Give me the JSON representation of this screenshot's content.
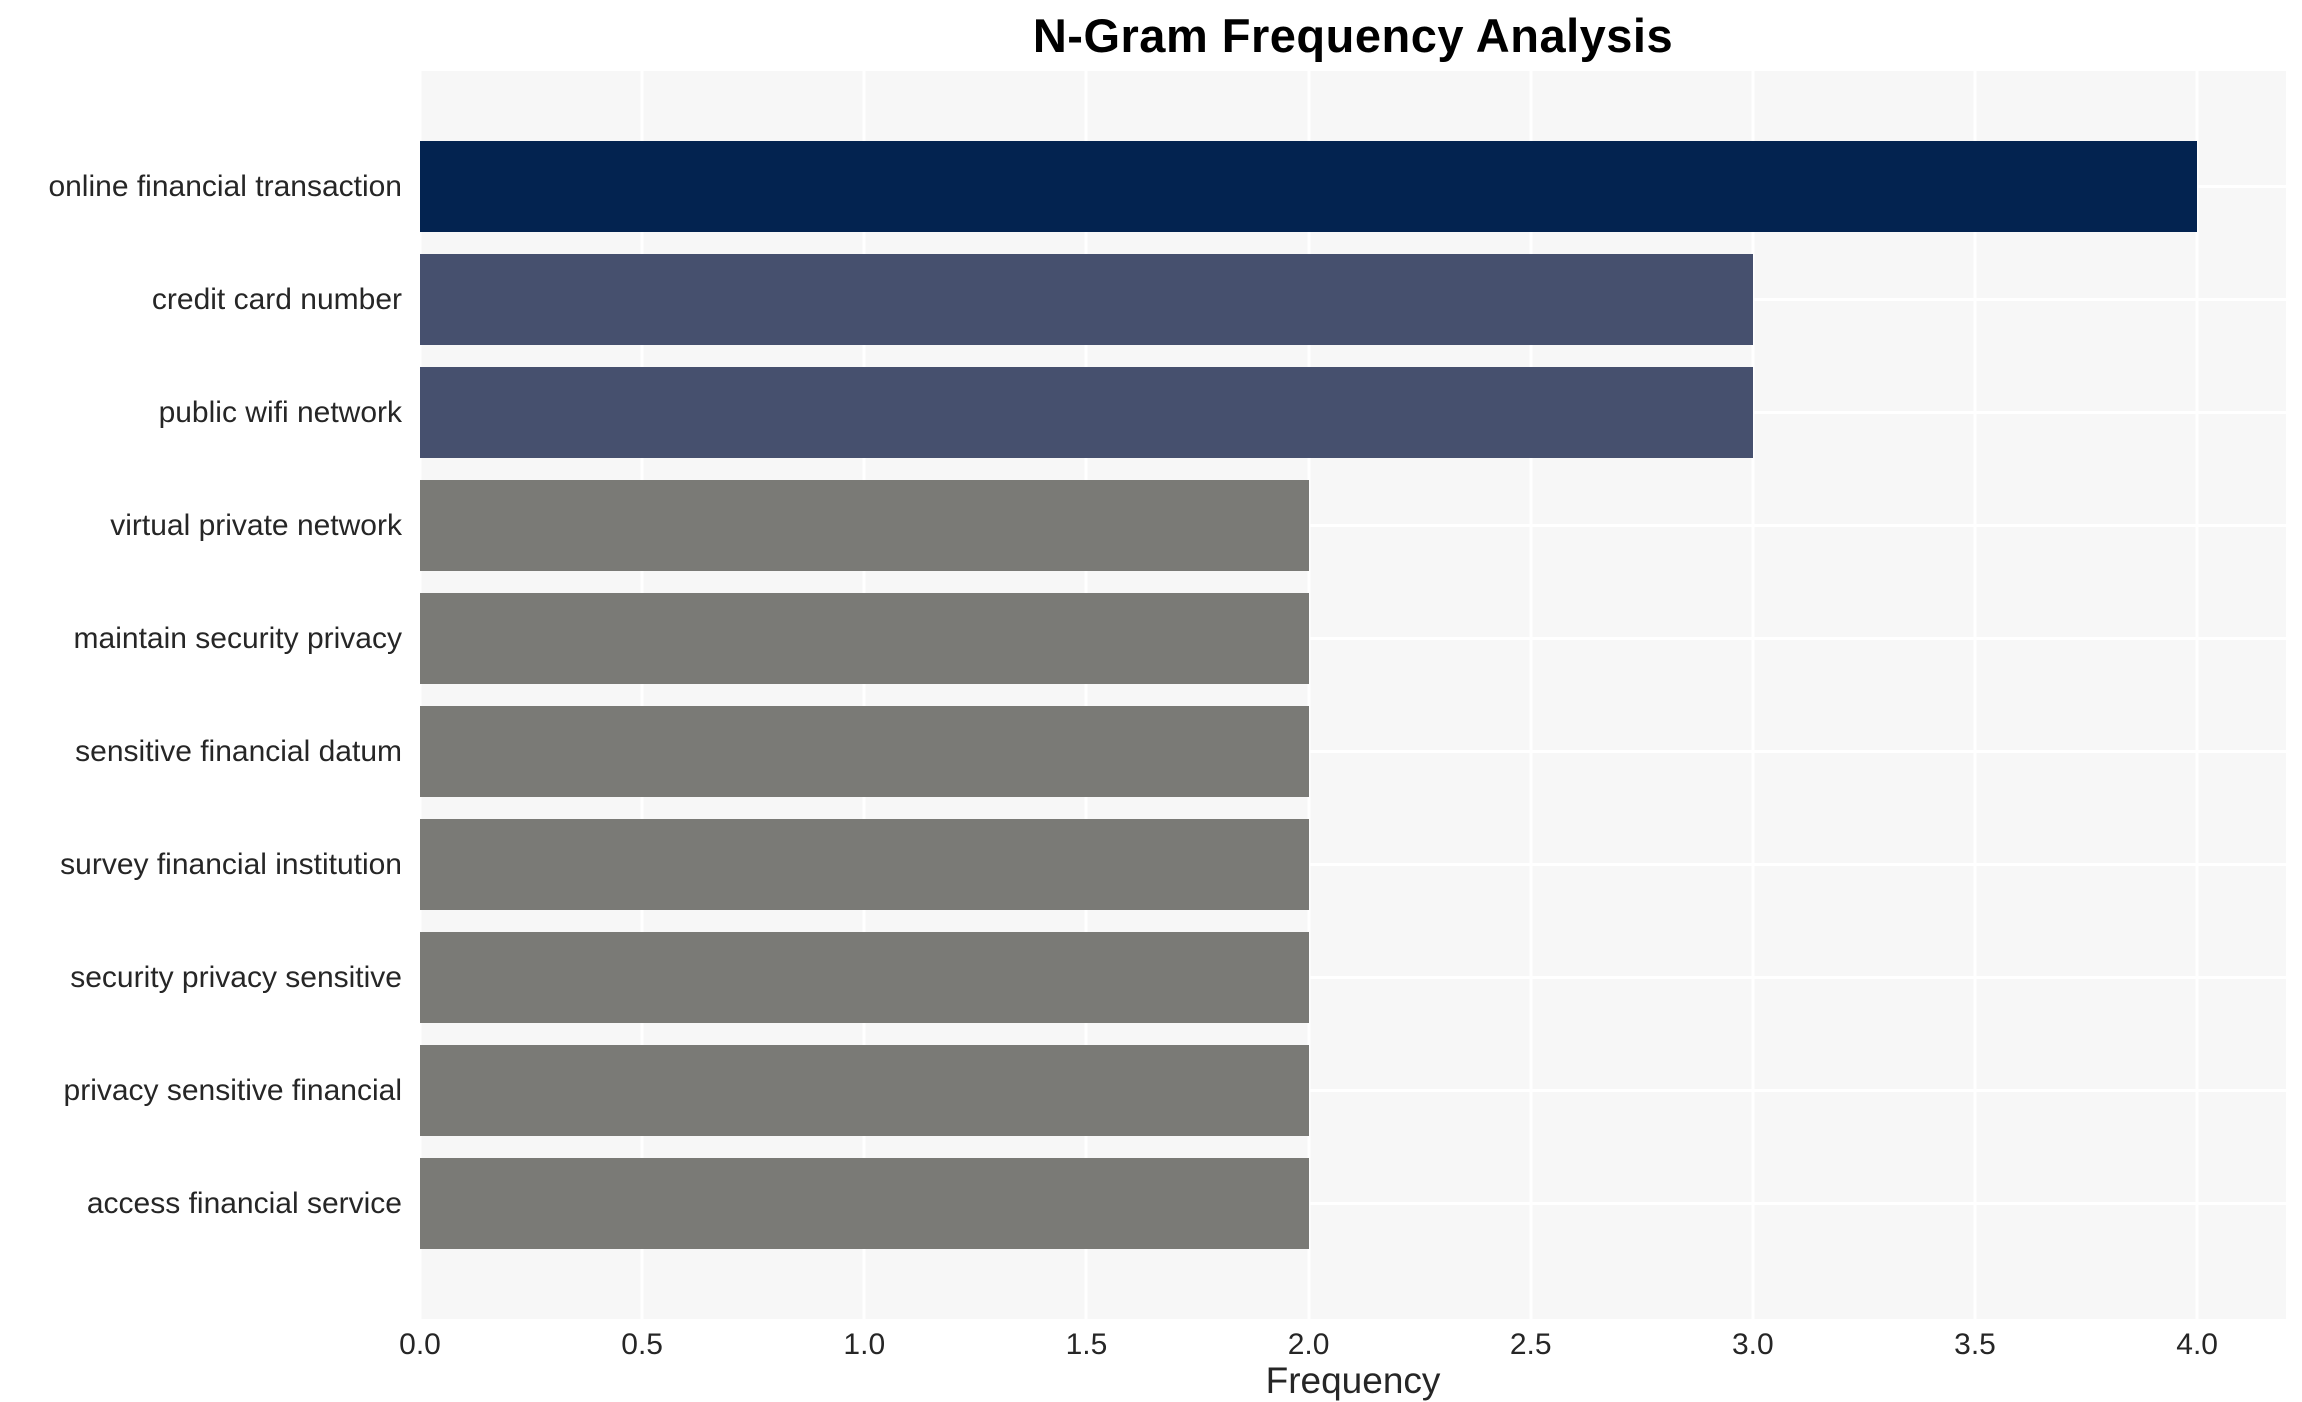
{
  "chart_data": {
    "type": "bar",
    "orientation": "horizontal",
    "title": "N-Gram Frequency Analysis",
    "xlabel": "Frequency",
    "ylabel": "",
    "categories": [
      "online financial transaction",
      "credit card number",
      "public wifi network",
      "virtual private network",
      "maintain security privacy",
      "sensitive financial datum",
      "survey financial institution",
      "security privacy sensitive",
      "privacy sensitive financial",
      "access financial service"
    ],
    "values": [
      4,
      3,
      3,
      2,
      2,
      2,
      2,
      2,
      2,
      2
    ],
    "bar_colors": [
      "#032350",
      "#46506e",
      "#46506e",
      "#7a7a76",
      "#7a7a76",
      "#7a7a76",
      "#7a7a76",
      "#7a7a76",
      "#7a7a76",
      "#7a7a76"
    ],
    "xlim": [
      0,
      4.2
    ],
    "xticks": [
      0.0,
      0.5,
      1.0,
      1.5,
      2.0,
      2.5,
      3.0,
      3.5,
      4.0
    ],
    "xtick_labels": [
      "0.0",
      "0.5",
      "1.0",
      "1.5",
      "2.0",
      "2.5",
      "3.0",
      "3.5",
      "4.0"
    ],
    "grid": true,
    "grid_color": "#ffffff",
    "plot_bg": "#f7f7f7",
    "legend": false
  }
}
